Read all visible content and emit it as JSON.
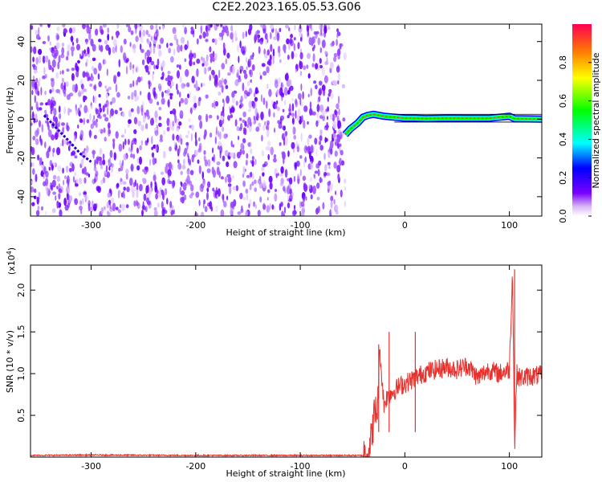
{
  "title": "C2E2.2023.165.05.53.G06",
  "chart_data": [
    {
      "type": "heatmap",
      "xlabel": "Height of straight line (km)",
      "ylabel": "Frequency (Hz)",
      "xlim": [
        -358,
        131
      ],
      "ylim": [
        -50,
        49
      ],
      "x_ticks": [
        -300,
        -200,
        -100,
        0,
        100
      ],
      "y_ticks": [
        -40,
        -20,
        0,
        20,
        40
      ],
      "colorbar": {
        "label": "Normalized spectral amplitude",
        "range": [
          0.0,
          1.0
        ],
        "ticks": [
          0.0,
          0.2,
          0.4,
          0.6,
          0.8
        ]
      },
      "noise_region_x": [
        -358,
        -57
      ],
      "signal_curve": {
        "x": [
          -57,
          -52,
          -45,
          -40,
          -35,
          -30,
          -20,
          -10,
          0,
          10,
          20,
          40,
          60,
          80,
          100,
          105,
          131
        ],
        "y": [
          -8,
          -5,
          -2,
          1,
          2,
          2.5,
          1.5,
          1,
          0.5,
          0.5,
          0.3,
          0.5,
          0.4,
          0.4,
          1.5,
          0.2,
          0
        ]
      },
      "streak_x": [
        -345,
        -320,
        -310,
        -300
      ],
      "streak_y": [
        2,
        -12,
        -18,
        -22
      ]
    },
    {
      "type": "line",
      "xlabel": "Height of straight line (km)",
      "ylabel": "SNR (10 * v/v)",
      "y_multiplier": "(x10",
      "y_multiplier_exp": "4",
      "y_multiplier_close": ")",
      "xlim": [
        -358,
        131
      ],
      "ylim": [
        0,
        2.3
      ],
      "x_ticks": [
        -300,
        -200,
        -100,
        0,
        100
      ],
      "y_ticks": [
        0.5,
        1.0,
        1.5,
        2.0
      ],
      "y_tick_labels": [
        "0.5",
        "1.0",
        "1.5",
        "2.0"
      ],
      "color": "#e8302c",
      "x": [
        -358,
        -300,
        -200,
        -100,
        -40,
        -33,
        -30,
        -26,
        -24,
        -20,
        -18,
        -15,
        -10,
        -5,
        0,
        10,
        20,
        30,
        40,
        50,
        60,
        70,
        80,
        90,
        100,
        103,
        105,
        107,
        110,
        120,
        131
      ],
      "y": [
        0.02,
        0.025,
        0.02,
        0.02,
        0.02,
        0.12,
        0.45,
        0.6,
        1.3,
        0.62,
        0.7,
        0.75,
        0.8,
        0.85,
        0.88,
        0.95,
        1.02,
        1.05,
        1.08,
        1.05,
        1.1,
        0.95,
        1.05,
        1.0,
        1.05,
        2.25,
        0.1,
        1.0,
        0.95,
        0.97,
        0.98
      ],
      "spikes": [
        {
          "x": -25,
          "y": 1.35
        },
        {
          "x": -15,
          "y": 1.5
        },
        {
          "x": 10,
          "y": 1.5
        },
        {
          "x": 105,
          "y": 2.25
        }
      ]
    }
  ]
}
